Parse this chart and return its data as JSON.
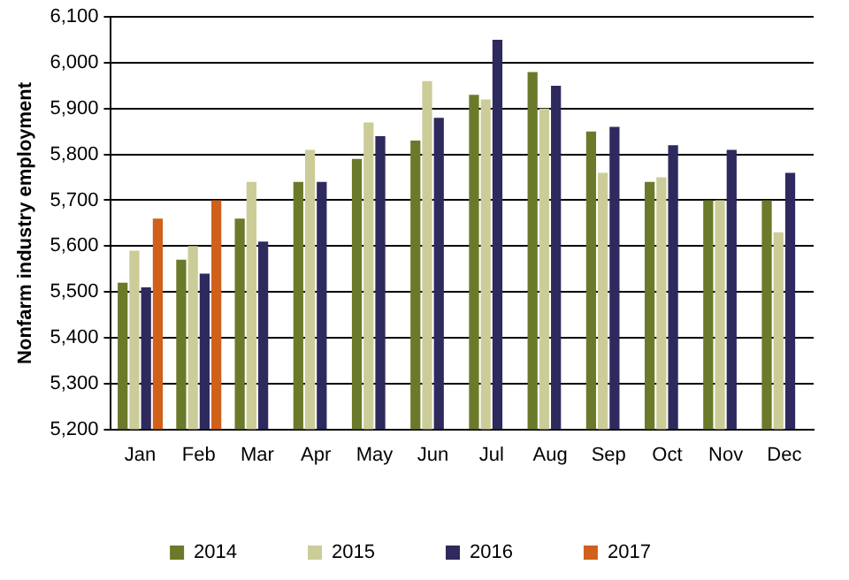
{
  "chart_data": {
    "type": "bar",
    "ylabel": "Nonfarm industry employment",
    "categories": [
      "Jan",
      "Feb",
      "Mar",
      "Apr",
      "May",
      "Jun",
      "Jul",
      "Aug",
      "Sep",
      "Oct",
      "Nov",
      "Dec"
    ],
    "series": [
      {
        "name": "2014",
        "color": "#6b7a2a",
        "values": [
          5520,
          5570,
          5660,
          5740,
          5790,
          5830,
          5930,
          5980,
          5850,
          5740,
          5700,
          5700
        ]
      },
      {
        "name": "2015",
        "color": "#cccc99",
        "values": [
          5590,
          5600,
          5740,
          5810,
          5870,
          5960,
          5920,
          5900,
          5760,
          5750,
          5700,
          5630
        ]
      },
      {
        "name": "2016",
        "color": "#2e2a5e",
        "values": [
          5510,
          5540,
          5610,
          5740,
          5840,
          5880,
          6050,
          5950,
          5860,
          5820,
          5810,
          5760
        ]
      },
      {
        "name": "2017",
        "color": "#d0601a",
        "values": [
          5660,
          5700,
          null,
          null,
          null,
          null,
          null,
          null,
          null,
          null,
          null,
          null
        ]
      }
    ],
    "ylim": [
      5200,
      6100
    ],
    "yticks": [
      {
        "value": 5200,
        "label": "5,200"
      },
      {
        "value": 5300,
        "label": "5,300"
      },
      {
        "value": 5400,
        "label": "5,400"
      },
      {
        "value": 5500,
        "label": "5,500"
      },
      {
        "value": 5600,
        "label": "5,600"
      },
      {
        "value": 5700,
        "label": "5,700"
      },
      {
        "value": 5800,
        "label": "5,800"
      },
      {
        "value": 5900,
        "label": "5,900"
      },
      {
        "value": 6000,
        "label": "6,000"
      },
      {
        "value": 6100,
        "label": "6,100"
      }
    ],
    "grid": "y",
    "legend": "bottom"
  }
}
